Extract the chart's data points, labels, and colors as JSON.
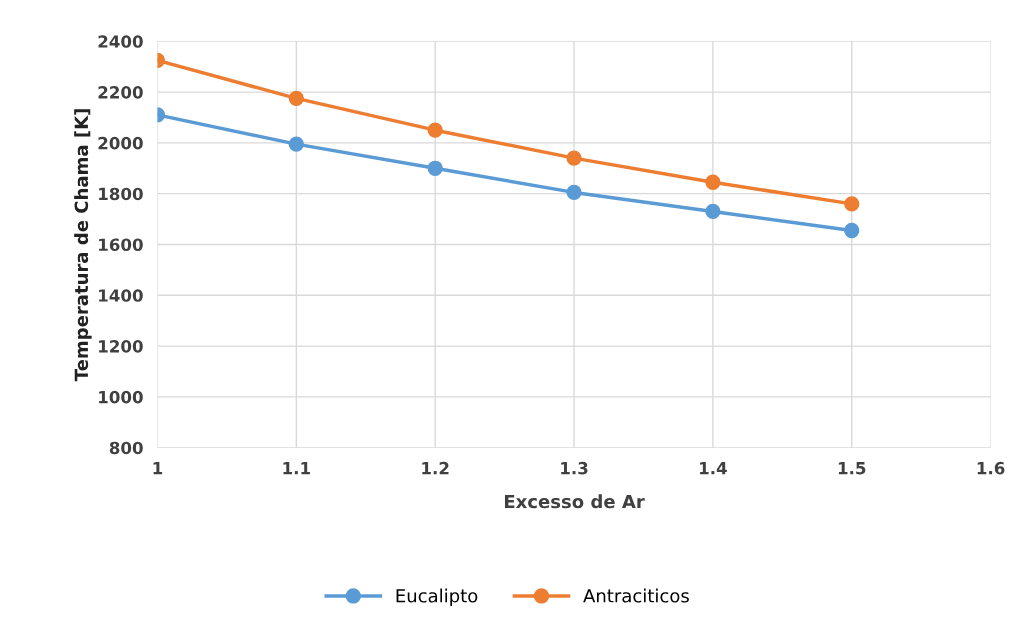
{
  "chart_data": {
    "type": "line",
    "xlabel": "Excesso de Ar",
    "ylabel": "Temperatura de Chama [K]",
    "x": [
      1,
      1.1,
      1.2,
      1.3,
      1.4,
      1.5
    ],
    "series": [
      {
        "name": "Eucalipto",
        "color": "#5b9bd5",
        "values": [
          2110,
          1995,
          1900,
          1805,
          1730,
          1655
        ]
      },
      {
        "name": "Antraciticos",
        "color": "#ed7d31",
        "values": [
          2325,
          2175,
          2050,
          1940,
          1845,
          1760
        ]
      }
    ],
    "xlim": [
      1,
      1.6
    ],
    "xticks": [
      1,
      1.1,
      1.2,
      1.3,
      1.4,
      1.5,
      1.6
    ],
    "ylim": [
      800,
      2400
    ],
    "yticks": [
      800,
      1000,
      1200,
      1400,
      1600,
      1800,
      2000,
      2200,
      2400
    ],
    "grid": true,
    "legend": "bottom",
    "marker": "circle",
    "line_style": "solid"
  }
}
